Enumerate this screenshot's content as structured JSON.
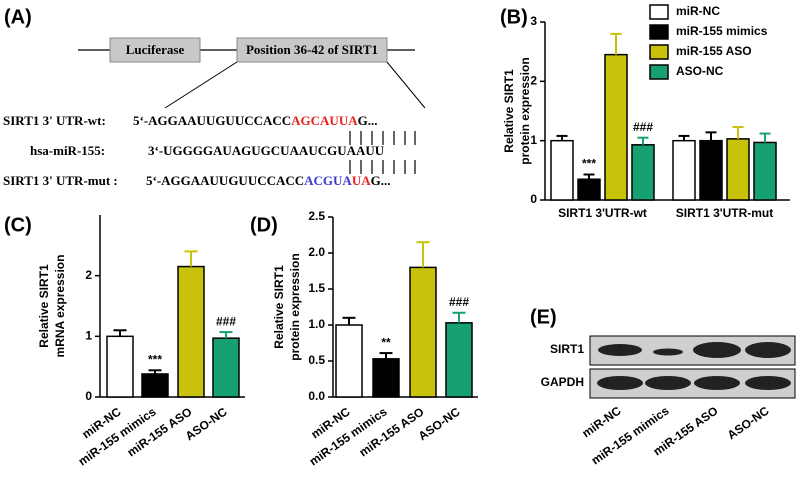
{
  "panel_labels": [
    "(A)",
    "(B)",
    "(C)",
    "(D)",
    "(E)"
  ],
  "panel_a": {
    "boxes": [
      "Luciferase",
      "Position 36-42 of SIRT1"
    ],
    "rows": [
      {
        "label": "SIRT1 3' UTR-wt:",
        "segments": [
          {
            "text": "5‘-AGGAAUUGUUCCACC",
            "color": "#000000"
          },
          {
            "text": "AGCAUUA",
            "color": "#e8221c"
          },
          {
            "text": "G...",
            "color": "#000000"
          }
        ]
      },
      {
        "label": "hsa-miR-155:",
        "segments": [
          {
            "text": "3‘-UGGGGAUAGUGCUAAUCGUAAUU",
            "color": "#000000"
          }
        ]
      },
      {
        "label": "SIRT1 3' UTR-mut :",
        "segments": [
          {
            "text": "5‘-AGGAAUUGUUCCACC",
            "color": "#000000"
          },
          {
            "text": "ACGUA",
            "color": "#3a3acb"
          },
          {
            "text": "UA",
            "color": "#e8221c"
          },
          {
            "text": "G...",
            "color": "#000000"
          }
        ]
      }
    ]
  },
  "chart_data": [
    {
      "type": "bar",
      "y_label": [
        "Relative SIRT1",
        "protein expression"
      ],
      "categories": [
        "SIRT1 3'UTR-wt",
        "SIRT1 3'UTR-mut"
      ],
      "series": [
        {
          "name": "miR-NC",
          "color": "#ffffff",
          "values": [
            1.0,
            1.0
          ],
          "errors": [
            0.08,
            0.08
          ],
          "annotations": [
            null,
            null
          ]
        },
        {
          "name": "miR-155 mimics",
          "color": "#000000",
          "values": [
            0.35,
            1.0
          ],
          "errors": [
            0.08,
            0.14
          ],
          "annotations": [
            "***",
            null
          ]
        },
        {
          "name": "miR-155 ASO",
          "color": "#c8c20a",
          "values": [
            2.45,
            1.03
          ],
          "errors": [
            0.35,
            0.2
          ],
          "annotations": [
            null,
            null
          ]
        },
        {
          "name": "ASO-NC",
          "color": "#17a071",
          "values": [
            0.93,
            0.97
          ],
          "errors": [
            0.12,
            0.15
          ],
          "annotations": [
            "###",
            null
          ]
        }
      ],
      "ylim": [
        0,
        3
      ],
      "yticks": [
        0,
        1,
        2,
        3
      ]
    },
    {
      "type": "bar",
      "y_label": [
        "Relative SIRT1",
        "mRNA expression"
      ],
      "categories": [
        "miR-NC",
        "miR-155 mimics",
        "miR-155 ASO",
        "ASO-NC"
      ],
      "values": [
        1.0,
        0.38,
        2.15,
        0.97
      ],
      "errors": [
        0.1,
        0.06,
        0.25,
        0.1
      ],
      "colors": [
        "#ffffff",
        "#000000",
        "#c8c20a",
        "#17a071"
      ],
      "annotations": [
        null,
        "***",
        null,
        "###"
      ],
      "ylim": [
        0,
        3
      ],
      "yticks": [
        0,
        1,
        2
      ]
    },
    {
      "type": "bar",
      "y_label": [
        "Relative SIRT1",
        "protein expression"
      ],
      "categories": [
        "miR-NC",
        "miR-155 mimics",
        "miR-155 ASO",
        "ASO-NC"
      ],
      "values": [
        1.0,
        0.53,
        1.8,
        1.03
      ],
      "errors": [
        0.1,
        0.08,
        0.35,
        0.14
      ],
      "colors": [
        "#ffffff",
        "#000000",
        "#c8c20a",
        "#17a071"
      ],
      "annotations": [
        null,
        "**",
        null,
        "###"
      ],
      "ylim": [
        0,
        2.5
      ],
      "yticks": [
        {
          "value": 0,
          "label": "0.0"
        },
        0.5,
        {
          "value": 1,
          "label": "1.0"
        },
        1.5,
        {
          "value": 2,
          "label": "2.0"
        },
        2.5
      ]
    }
  ],
  "panel_e": {
    "bands": [
      "SIRT1",
      "GAPDH"
    ],
    "lanes": [
      "miR-NC",
      "miR-155 mimics",
      "miR-155 ASO",
      "ASO-NC"
    ]
  }
}
